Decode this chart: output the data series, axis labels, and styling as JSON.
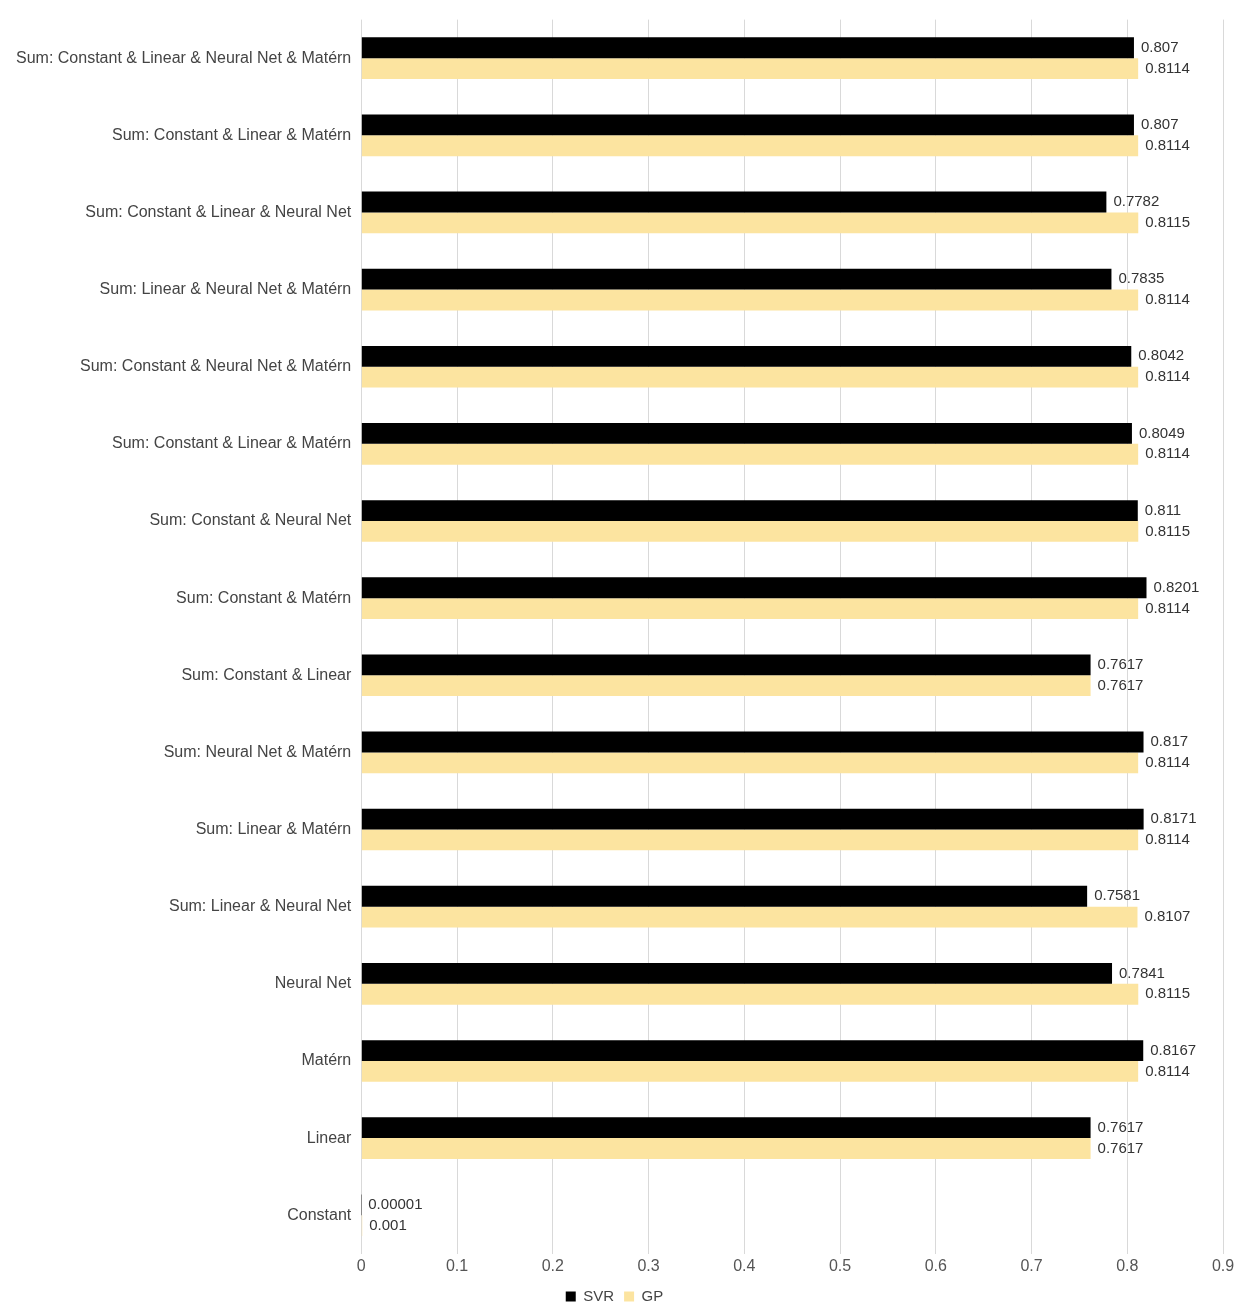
{
  "chart_data": {
    "type": "bar",
    "orientation": "horizontal",
    "categories": [
      "Sum: Constant & Linear & Neural Net & Matérn",
      "Sum: Constant & Linear & Matérn",
      "Sum: Constant & Linear & Neural Net",
      "Sum: Linear & Neural Net & Matérn",
      "Sum: Constant & Neural Net & Matérn",
      "Sum: Constant & Linear & Matérn",
      "Sum: Constant & Neural Net",
      "Sum: Constant & Matérn",
      "Sum: Constant & Linear",
      "Sum: Neural Net & Matérn",
      "Sum: Linear & Matérn",
      "Sum: Linear & Neural Net",
      "Neural Net",
      "Matérn",
      "Linear",
      "Constant"
    ],
    "series": [
      {
        "name": "SVR",
        "color": "#000000",
        "values": [
          0.807,
          0.807,
          0.7782,
          0.7835,
          0.8042,
          0.8049,
          0.811,
          0.8201,
          0.7617,
          0.817,
          0.8171,
          0.7581,
          0.7841,
          0.8167,
          0.7617,
          1e-05
        ],
        "value_labels": [
          "0.807",
          "0.807",
          "0.7782",
          "0.7835",
          "0.8042",
          "0.8049",
          "0.811",
          "0.8201",
          "0.7617",
          "0.817",
          "0.8171",
          "0.7581",
          "0.7841",
          "0.8167",
          "0.7617",
          "0.00001"
        ]
      },
      {
        "name": "GP",
        "color": "#fce4a0",
        "values": [
          0.8114,
          0.8114,
          0.8115,
          0.8114,
          0.8114,
          0.8114,
          0.8115,
          0.8114,
          0.7617,
          0.8114,
          0.8114,
          0.8107,
          0.8115,
          0.8114,
          0.7617,
          0.001
        ],
        "value_labels": [
          "0.8114",
          "0.8114",
          "0.8115",
          "0.8114",
          "0.8114",
          "0.8114",
          "0.8115",
          "0.8114",
          "0.7617",
          "0.8114",
          "0.8114",
          "0.8107",
          "0.8115",
          "0.8114",
          "0.7617",
          "0.001"
        ]
      }
    ],
    "xlim": [
      0,
      0.9
    ],
    "xticks": [
      0,
      0.1,
      0.2,
      0.3,
      0.4,
      0.5,
      0.6,
      0.7,
      0.8,
      0.9
    ],
    "grid": "x",
    "legend": "bottom"
  }
}
